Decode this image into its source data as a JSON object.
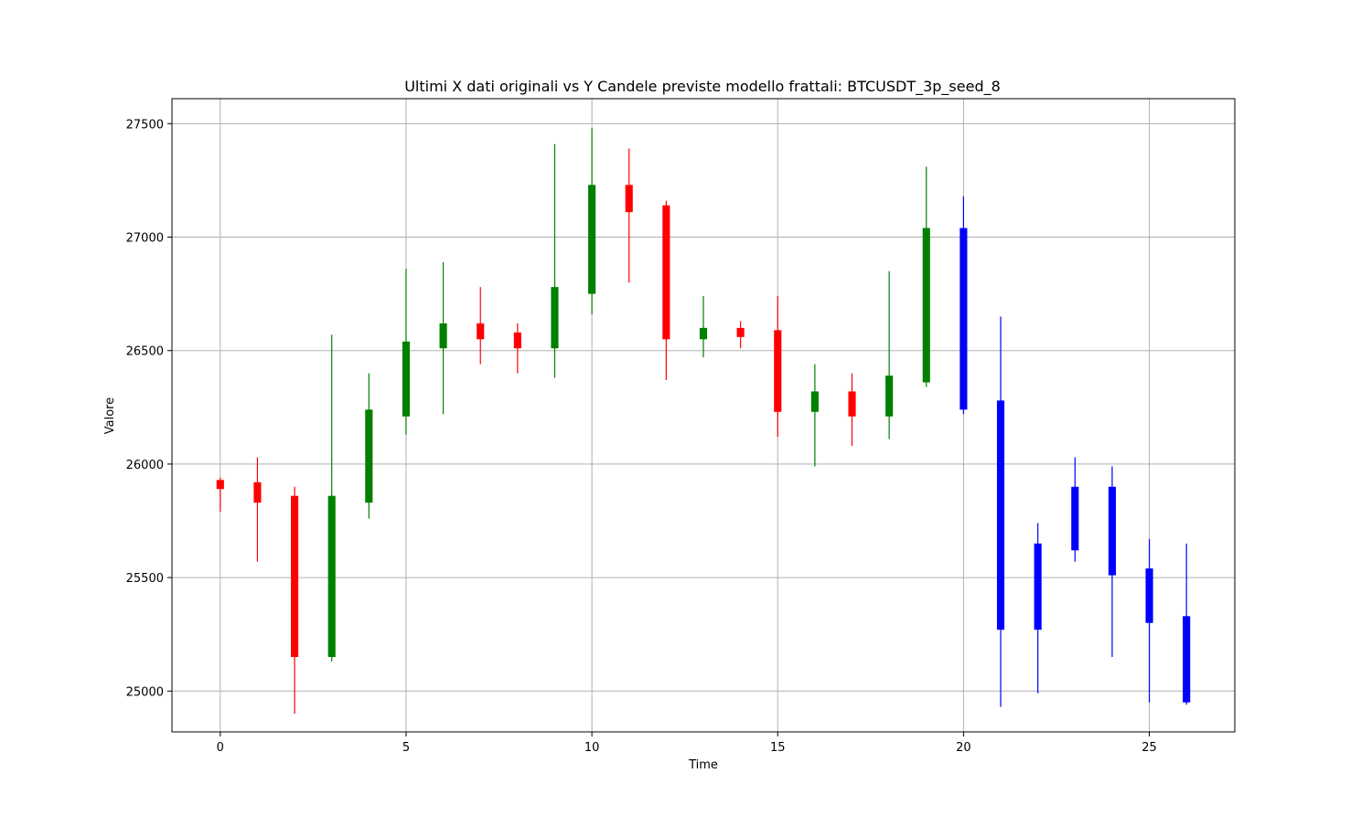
{
  "chart_data": {
    "type": "candlestick",
    "title": "Ultimi X dati originali vs Y Candele previste modello frattali: BTCUSDT_3p_seed_8",
    "xlabel": "Time",
    "ylabel": "Valore",
    "xlim": [
      -1.3,
      27.3
    ],
    "ylim": [
      24820,
      27610
    ],
    "x_ticks": [
      0,
      5,
      10,
      15,
      20,
      25
    ],
    "y_ticks": [
      25000,
      25500,
      26000,
      26500,
      27000,
      27500
    ],
    "grid": true,
    "colors": {
      "up": "#008000",
      "down": "#ff0000",
      "predicted": "#0000ff"
    },
    "candles": [
      {
        "x": 0,
        "open": 25930,
        "close": 25890,
        "high": 25940,
        "low": 25790,
        "kind": "down"
      },
      {
        "x": 1,
        "open": 25920,
        "close": 25830,
        "high": 26030,
        "low": 25570,
        "kind": "down"
      },
      {
        "x": 2,
        "open": 25860,
        "close": 25150,
        "high": 25900,
        "low": 24900,
        "kind": "down"
      },
      {
        "x": 3,
        "open": 25150,
        "close": 25860,
        "high": 26570,
        "low": 25130,
        "kind": "up"
      },
      {
        "x": 4,
        "open": 25830,
        "close": 26240,
        "high": 26400,
        "low": 25760,
        "kind": "up"
      },
      {
        "x": 5,
        "open": 26210,
        "close": 26540,
        "high": 26860,
        "low": 26130,
        "kind": "up"
      },
      {
        "x": 6,
        "open": 26510,
        "close": 26620,
        "high": 26890,
        "low": 26220,
        "kind": "up"
      },
      {
        "x": 7,
        "open": 26620,
        "close": 26550,
        "high": 26780,
        "low": 26440,
        "kind": "down"
      },
      {
        "x": 8,
        "open": 26580,
        "close": 26510,
        "high": 26620,
        "low": 26400,
        "kind": "down"
      },
      {
        "x": 9,
        "open": 26510,
        "close": 26780,
        "high": 27410,
        "low": 26380,
        "kind": "up"
      },
      {
        "x": 10,
        "open": 26750,
        "close": 27230,
        "high": 27480,
        "low": 26660,
        "kind": "up"
      },
      {
        "x": 11,
        "open": 27230,
        "close": 27110,
        "high": 27390,
        "low": 26800,
        "kind": "down"
      },
      {
        "x": 12,
        "open": 27140,
        "close": 26550,
        "high": 27160,
        "low": 26370,
        "kind": "down"
      },
      {
        "x": 13,
        "open": 26550,
        "close": 26600,
        "high": 26740,
        "low": 26470,
        "kind": "up"
      },
      {
        "x": 14,
        "open": 26600,
        "close": 26560,
        "high": 26630,
        "low": 26510,
        "kind": "down"
      },
      {
        "x": 15,
        "open": 26590,
        "close": 26230,
        "high": 26740,
        "low": 26120,
        "kind": "down"
      },
      {
        "x": 16,
        "open": 26230,
        "close": 26320,
        "high": 26440,
        "low": 25990,
        "kind": "up"
      },
      {
        "x": 17,
        "open": 26320,
        "close": 26210,
        "high": 26400,
        "low": 26080,
        "kind": "down"
      },
      {
        "x": 18,
        "open": 26210,
        "close": 26390,
        "high": 26850,
        "low": 26110,
        "kind": "up"
      },
      {
        "x": 19,
        "open": 26360,
        "close": 27040,
        "high": 27310,
        "low": 26340,
        "kind": "up"
      },
      {
        "x": 20,
        "open": 27040,
        "close": 26240,
        "high": 27180,
        "low": 26220,
        "kind": "predicted"
      },
      {
        "x": 21,
        "open": 26280,
        "close": 25270,
        "high": 26650,
        "low": 24930,
        "kind": "predicted"
      },
      {
        "x": 22,
        "open": 25650,
        "close": 25270,
        "high": 25740,
        "low": 24990,
        "kind": "predicted"
      },
      {
        "x": 23,
        "open": 25900,
        "close": 25620,
        "high": 26030,
        "low": 25570,
        "kind": "predicted"
      },
      {
        "x": 24,
        "open": 25900,
        "close": 25510,
        "high": 25990,
        "low": 25150,
        "kind": "predicted"
      },
      {
        "x": 25,
        "open": 25540,
        "close": 25300,
        "high": 25670,
        "low": 24950,
        "kind": "predicted"
      },
      {
        "x": 26,
        "open": 25330,
        "close": 24950,
        "high": 25650,
        "low": 24940,
        "kind": "predicted"
      }
    ]
  }
}
